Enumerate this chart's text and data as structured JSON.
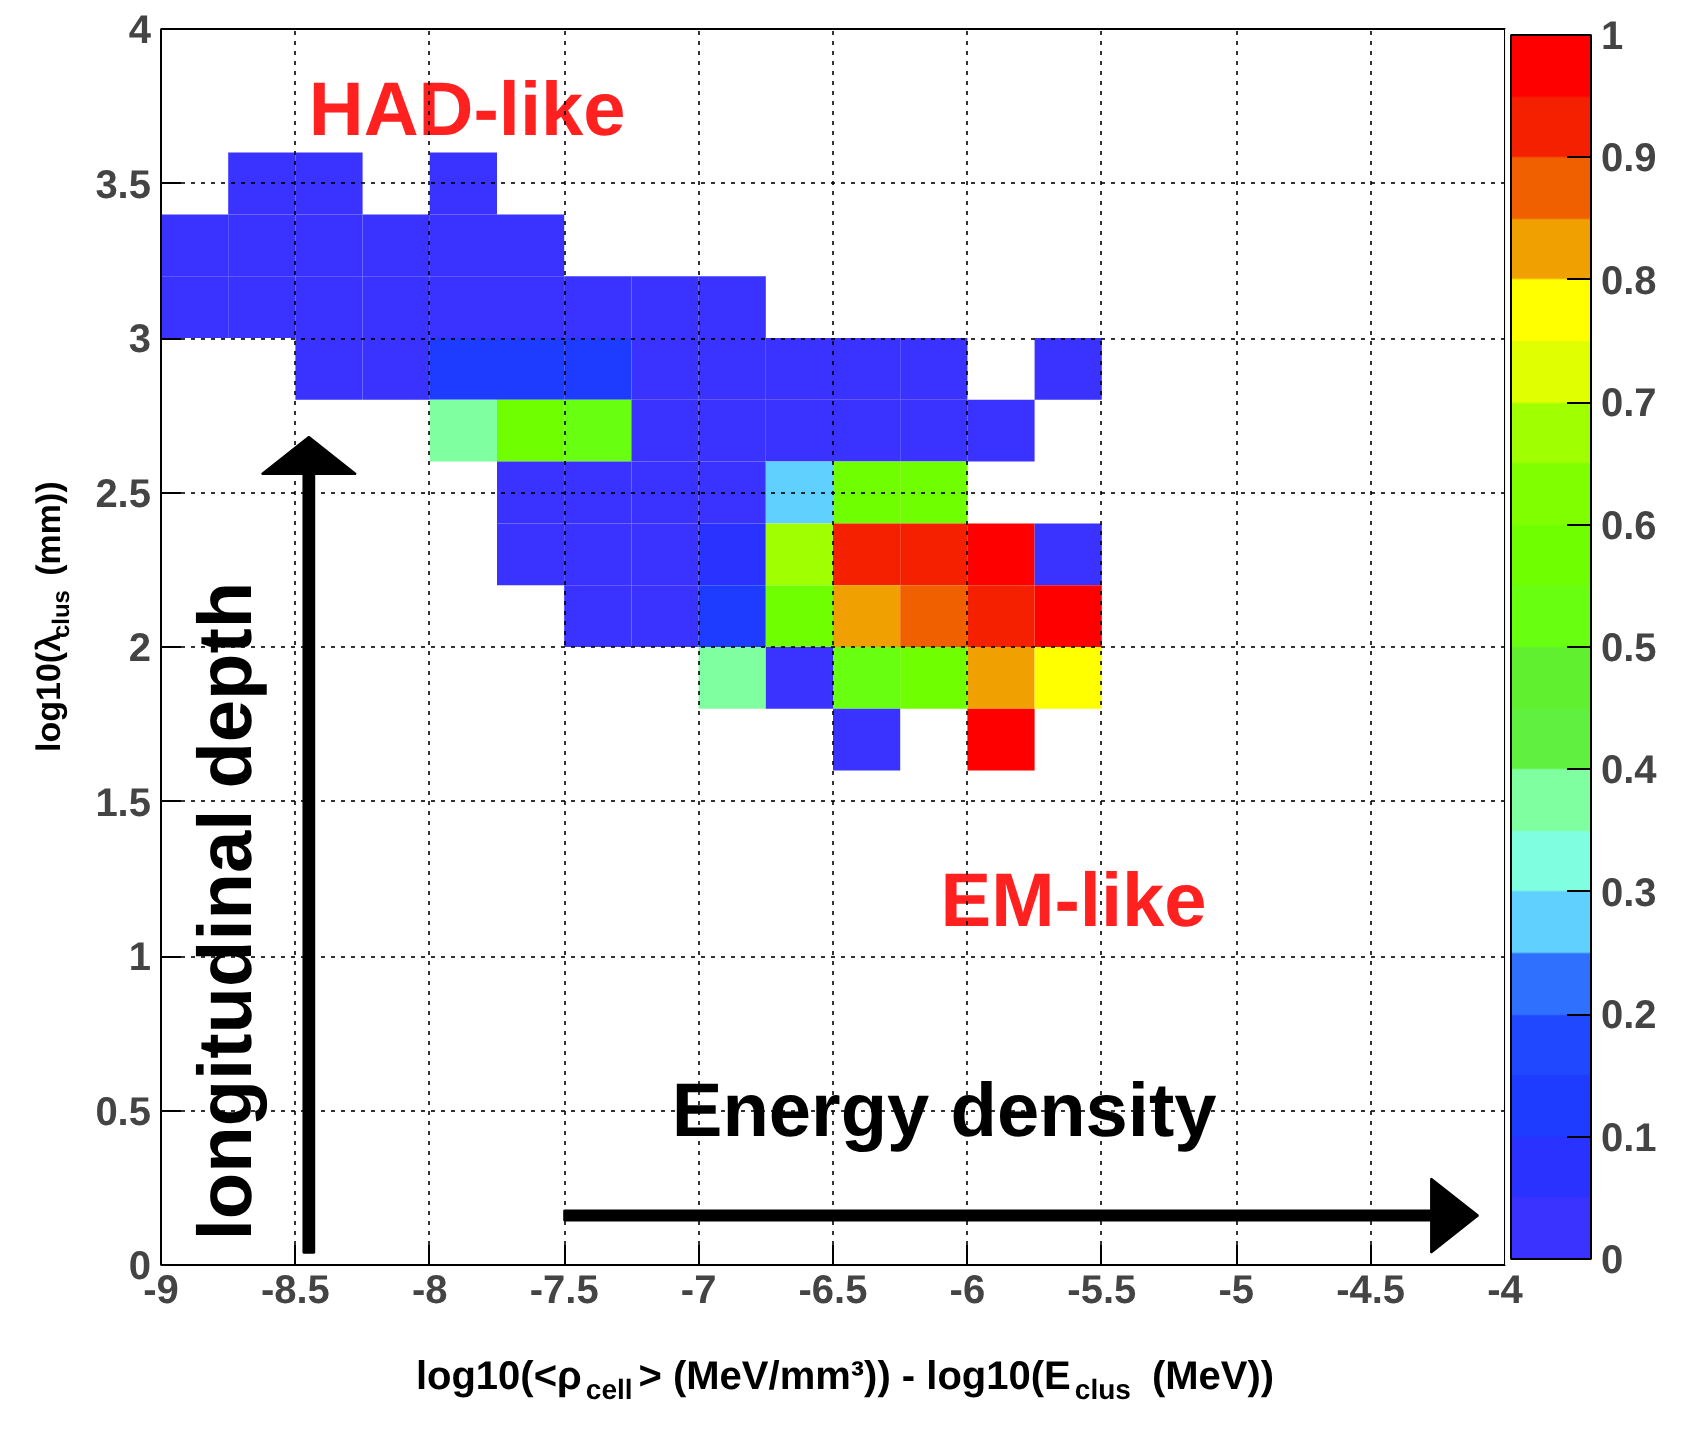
{
  "chart_data": {
    "type": "heatmap",
    "xlabel": "log10(<ρ$_{cell}$> (MeV/mm³)) - log10(E$_{clus}$ (MeV))",
    "ylabel": "log10(λ$_{clus}$ (mm))",
    "x": [
      -8.875,
      -8.625,
      -8.375,
      -8.125,
      -7.875,
      -7.625,
      -7.375,
      -7.125,
      -6.875,
      -6.625,
      -6.375,
      -6.125,
      -5.875,
      -5.625
    ],
    "y": [
      3.5,
      3.3,
      3.1,
      2.9,
      2.7,
      2.5,
      2.3,
      2.1,
      1.9,
      1.7
    ],
    "cells": [
      [
        null,
        0.02,
        0.02,
        null,
        0.02,
        null,
        null,
        null,
        null,
        null,
        null,
        null,
        null,
        null
      ],
      [
        0.02,
        0.02,
        0.02,
        0.02,
        0.02,
        0.02,
        null,
        null,
        null,
        null,
        null,
        null,
        null,
        null
      ],
      [
        0.02,
        0.02,
        0.02,
        0.02,
        0.02,
        0.02,
        0.02,
        0.02,
        0.02,
        null,
        null,
        null,
        null,
        null
      ],
      [
        null,
        null,
        0.02,
        0.02,
        0.12,
        0.12,
        0.12,
        0.02,
        0.02,
        0.02,
        0.02,
        0.02,
        null,
        0.02
      ],
      [
        null,
        null,
        null,
        null,
        0.37,
        0.57,
        0.52,
        0.02,
        0.02,
        0.02,
        0.02,
        0.02,
        0.02,
        null
      ],
      [
        null,
        null,
        null,
        null,
        null,
        0.02,
        0.02,
        0.02,
        0.02,
        0.27,
        0.57,
        0.57,
        null,
        null
      ],
      [
        null,
        null,
        null,
        null,
        null,
        0.02,
        0.02,
        0.02,
        0.07,
        0.67,
        0.92,
        0.92,
        0.97,
        0.02
      ],
      [
        null,
        null,
        null,
        null,
        null,
        null,
        0.02,
        0.02,
        0.12,
        0.57,
        0.82,
        0.87,
        0.92,
        0.97
      ],
      [
        null,
        null,
        null,
        null,
        null,
        null,
        null,
        null,
        0.37,
        0.02,
        0.52,
        0.57,
        0.82,
        0.77
      ],
      [
        null,
        null,
        null,
        null,
        null,
        null,
        null,
        null,
        null,
        null,
        0.02,
        null,
        0.97,
        null
      ]
    ],
    "colors": [
      "#3a32ff",
      "#2a32ff",
      "#1e3cff",
      "#2048ff",
      "#3070ff",
      "#60d0ff",
      "#80ffe0",
      "#80ffa0",
      "#60f040",
      "#60f030",
      "#68ff10",
      "#70ff00",
      "#80ff00",
      "#a0ff00",
      "#e0ff00",
      "#ffff00",
      "#f0a000",
      "#f06000",
      "#f52000",
      "#ff0000"
    ],
    "clim": [
      0,
      1
    ],
    "cticks": [
      0,
      0.1,
      0.2,
      0.3,
      0.4,
      0.5,
      0.6,
      0.7,
      0.8,
      0.9,
      1
    ],
    "xlim": [
      -9,
      -4
    ],
    "ylim": [
      0,
      4
    ],
    "xticks": [
      -9,
      -8.5,
      -8,
      -7.5,
      -7,
      -6.5,
      -6,
      -5.5,
      -5,
      -4.5,
      -4
    ],
    "yticks": [
      0,
      0.5,
      1,
      1.5,
      2,
      2.5,
      3,
      3.5,
      4
    ],
    "grid": true,
    "annotations": [
      "HAD-like",
      "EM-like",
      "longitudinal depth",
      "Energy density"
    ]
  }
}
